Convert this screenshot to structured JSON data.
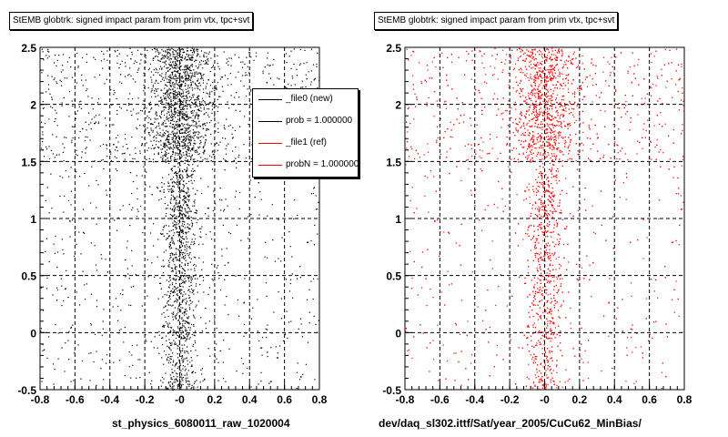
{
  "panels": [
    {
      "title": "StEMB globtrk: signed impact param from prim vtx, tpc+svt",
      "footer": "st_physics_6080011_raw_1020004",
      "color": "#000000"
    },
    {
      "title": "StEMB globtrk: signed impact param from prim vtx, tpc+svt",
      "footer": "dev/daq_sl302.ittf/Sat/year_2005/CuCu62_MinBias/",
      "color": "#ff0000"
    }
  ],
  "legend": {
    "items": [
      {
        "label": "_file0 (new)",
        "color": "#000000"
      },
      {
        "label": "prob = 1.000000",
        "color": "#000000"
      },
      {
        "label": "_file1 (ref)",
        "color": "#ff0000"
      },
      {
        "label": "probN = 1.000000",
        "color": "#ff0000"
      }
    ]
  },
  "chart_data": [
    {
      "type": "scatter",
      "title": "StEMB globtrk: signed impact param from prim vtx, tpc+svt",
      "xlabel": "st_physics_6080011_raw_1020004",
      "ylabel": "",
      "xlim": [
        -0.8,
        0.8
      ],
      "ylim": [
        -0.5,
        2.5
      ],
      "xticks": [
        "-0.8",
        "-0.6",
        "-0.4",
        "-0.2",
        "-0",
        "0.2",
        "0.4",
        "0.6",
        "0.8"
      ],
      "yticks": [
        "-0.5",
        "0",
        "0.5",
        "1",
        "1.5",
        "2",
        "2.5"
      ],
      "grid": true,
      "legend_position": "top-right",
      "series": [
        {
          "name": "_file0 (new)",
          "color": "#000000"
        }
      ]
    },
    {
      "type": "scatter",
      "title": "StEMB globtrk: signed impact param from prim vtx, tpc+svt",
      "xlabel": "dev/daq_sl302.ittf/Sat/year_2005/CuCu62_MinBias/",
      "ylabel": "",
      "xlim": [
        -0.8,
        0.8
      ],
      "ylim": [
        -0.5,
        2.5
      ],
      "xticks": [
        "-0.8",
        "-0.6",
        "-0.4",
        "-0.2",
        "-0",
        "0.2",
        "0.4",
        "0.6",
        "0.8"
      ],
      "yticks": [
        "-0.5",
        "0",
        "0.5",
        "1",
        "1.5",
        "2",
        "2.5"
      ],
      "grid": true,
      "series": [
        {
          "name": "_file1 (ref)",
          "color": "#ff0000"
        }
      ]
    }
  ]
}
